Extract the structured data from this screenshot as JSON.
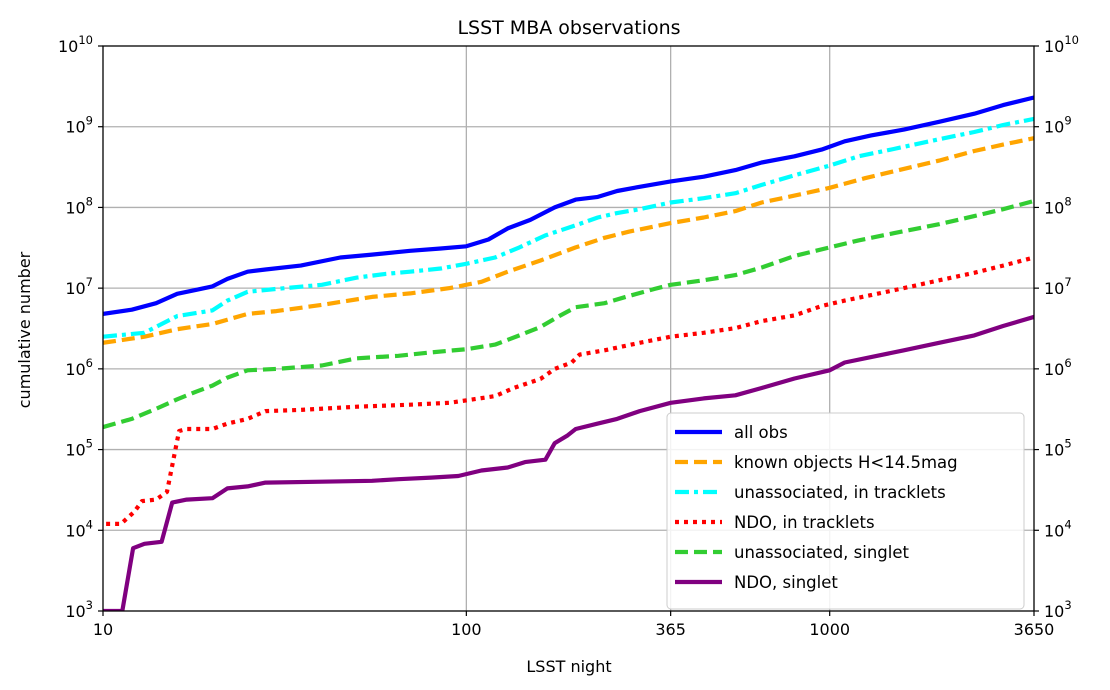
{
  "chart_data": {
    "type": "line",
    "title": "LSST MBA observations",
    "xlabel": "LSST night",
    "ylabel": "cumulative number",
    "x_scale": "log",
    "y_scale": "log",
    "xlim": [
      10,
      3650
    ],
    "ylim": [
      1000,
      10000000000
    ],
    "x_ticks": [
      {
        "value": 10,
        "label": "10"
      },
      {
        "value": 100,
        "label": "100"
      },
      {
        "value": 365,
        "label": "365"
      },
      {
        "value": 1000,
        "label": "1000"
      },
      {
        "value": 3650,
        "label": "3650"
      }
    ],
    "y_ticks": [
      {
        "value": 1000,
        "base": "10",
        "exp": "3"
      },
      {
        "value": 10000,
        "base": "10",
        "exp": "4"
      },
      {
        "value": 100000,
        "base": "10",
        "exp": "5"
      },
      {
        "value": 1000000,
        "base": "10",
        "exp": "6"
      },
      {
        "value": 10000000,
        "base": "10",
        "exp": "7"
      },
      {
        "value": 100000000,
        "base": "10",
        "exp": "8"
      },
      {
        "value": 1000000000,
        "base": "10",
        "exp": "9"
      },
      {
        "value": 10000000000,
        "base": "10",
        "exp": "10"
      }
    ],
    "grid": true,
    "legend_position": "lower-right",
    "series": [
      {
        "name": "all obs",
        "color": "#0000ff",
        "dash": "solid",
        "points": [
          [
            10,
            4800000.0
          ],
          [
            12,
            5400000.0
          ],
          [
            14,
            6500000.0
          ],
          [
            16,
            8500000.0
          ],
          [
            18,
            9500000.0
          ],
          [
            20,
            10500000.0
          ],
          [
            22,
            13000000.0
          ],
          [
            25,
            16000000.0
          ],
          [
            28,
            17000000.0
          ],
          [
            35,
            19000000.0
          ],
          [
            45,
            24000000.0
          ],
          [
            55,
            26000000.0
          ],
          [
            70,
            29000000.0
          ],
          [
            85,
            31000000.0
          ],
          [
            100,
            33000000.0
          ],
          [
            115,
            40000000.0
          ],
          [
            130,
            55000000.0
          ],
          [
            150,
            70000000.0
          ],
          [
            175,
            100000000.0
          ],
          [
            200,
            125000000.0
          ],
          [
            230,
            135000000.0
          ],
          [
            260,
            160000000.0
          ],
          [
            300,
            180000000.0
          ],
          [
            365,
            210000000.0
          ],
          [
            450,
            240000000.0
          ],
          [
            550,
            290000000.0
          ],
          [
            650,
            360000000.0
          ],
          [
            800,
            430000000.0
          ],
          [
            950,
            520000000.0
          ],
          [
            1100,
            660000000.0
          ],
          [
            1300,
            780000000.0
          ],
          [
            1600,
            920000000.0
          ],
          [
            2000,
            1150000000.0
          ],
          [
            2500,
            1450000000.0
          ],
          [
            3000,
            1850000000.0
          ],
          [
            3650,
            2300000000.0
          ]
        ]
      },
      {
        "name": "known objects H<14.5mag",
        "color": "#ffa500",
        "dash": "dashed",
        "points": [
          [
            10,
            2100000.0
          ],
          [
            13,
            2500000.0
          ],
          [
            16,
            3100000.0
          ],
          [
            20,
            3600000.0
          ],
          [
            25,
            4800000.0
          ],
          [
            30,
            5200000.0
          ],
          [
            40,
            6200000.0
          ],
          [
            55,
            7800000.0
          ],
          [
            70,
            8600000.0
          ],
          [
            90,
            10000000.0
          ],
          [
            110,
            12000000.0
          ],
          [
            130,
            16000000.0
          ],
          [
            160,
            22000000.0
          ],
          [
            200,
            32000000.0
          ],
          [
            240,
            42000000.0
          ],
          [
            280,
            50000000.0
          ],
          [
            365,
            64000000.0
          ],
          [
            450,
            75000000.0
          ],
          [
            550,
            90000000.0
          ],
          [
            650,
            115000000.0
          ],
          [
            800,
            140000000.0
          ],
          [
            1000,
            175000000.0
          ],
          [
            1250,
            230000000.0
          ],
          [
            1500,
            280000000.0
          ],
          [
            2000,
            380000000.0
          ],
          [
            2500,
            500000000.0
          ],
          [
            3000,
            600000000.0
          ],
          [
            3650,
            720000000.0
          ]
        ]
      },
      {
        "name": "unassociated, in tracklets",
        "color": "#00ffff",
        "dash": "dashdot",
        "points": [
          [
            10,
            2500000.0
          ],
          [
            13,
            2800000.0
          ],
          [
            16,
            4500000.0
          ],
          [
            18,
            4900000.0
          ],
          [
            20,
            5300000.0
          ],
          [
            22,
            7000000.0
          ],
          [
            25,
            9000000.0
          ],
          [
            30,
            9800000.0
          ],
          [
            40,
            11000000.0
          ],
          [
            50,
            13500000.0
          ],
          [
            60,
            15000000.0
          ],
          [
            70,
            16000000.0
          ],
          [
            85,
            17500000.0
          ],
          [
            100,
            20000000.0
          ],
          [
            120,
            24000000.0
          ],
          [
            140,
            32000000.0
          ],
          [
            165,
            45000000.0
          ],
          [
            200,
            60000000.0
          ],
          [
            230,
            75000000.0
          ],
          [
            260,
            85000000.0
          ],
          [
            300,
            95000000.0
          ],
          [
            365,
            115000000.0
          ],
          [
            450,
            130000000.0
          ],
          [
            550,
            150000000.0
          ],
          [
            650,
            190000000.0
          ],
          [
            800,
            250000000.0
          ],
          [
            1000,
            330000000.0
          ],
          [
            1200,
            430000000.0
          ],
          [
            1500,
            530000000.0
          ],
          [
            2000,
            700000000.0
          ],
          [
            2500,
            860000000.0
          ],
          [
            3000,
            1050000000.0
          ],
          [
            3650,
            1250000000.0
          ]
        ]
      },
      {
        "name": "NDO, in tracklets",
        "color": "#ff0000",
        "dash": "dotted",
        "points": [
          [
            10.2,
            12000.0
          ],
          [
            11.2,
            12000.0
          ],
          [
            12.2,
            17000.0
          ],
          [
            12.8,
            23000.0
          ],
          [
            14,
            24000.0
          ],
          [
            15,
            30000.0
          ],
          [
            16.2,
            170000.0
          ],
          [
            17,
            180000.0
          ],
          [
            20,
            180000.0
          ],
          [
            22,
            210000.0
          ],
          [
            25,
            240000.0
          ],
          [
            28,
            300000.0
          ],
          [
            35,
            310000.0
          ],
          [
            50,
            340000.0
          ],
          [
            70,
            360000.0
          ],
          [
            90,
            380000.0
          ],
          [
            120,
            460000.0
          ],
          [
            135,
            580000.0
          ],
          [
            160,
            750000.0
          ],
          [
            175,
            1000000.0
          ],
          [
            195,
            1200000.0
          ],
          [
            205,
            1500000.0
          ],
          [
            240,
            1700000.0
          ],
          [
            300,
            2100000.0
          ],
          [
            365,
            2500000.0
          ],
          [
            450,
            2800000.0
          ],
          [
            550,
            3200000.0
          ],
          [
            650,
            3900000.0
          ],
          [
            800,
            4600000.0
          ],
          [
            950,
            6000000.0
          ],
          [
            1100,
            7000000.0
          ],
          [
            1300,
            8200000.0
          ],
          [
            1600,
            10000000.0
          ],
          [
            2000,
            12500000.0
          ],
          [
            2500,
            15500000.0
          ],
          [
            3000,
            19000000.0
          ],
          [
            3650,
            24000000.0
          ]
        ]
      },
      {
        "name": "unassociated, singlet",
        "color": "#32cd32",
        "dash": "dashed",
        "points": [
          [
            10,
            190000.0
          ],
          [
            12,
            240000.0
          ],
          [
            14,
            320000.0
          ],
          [
            16,
            420000.0
          ],
          [
            18,
            520000.0
          ],
          [
            20,
            620000.0
          ],
          [
            22,
            780000.0
          ],
          [
            25,
            960000.0
          ],
          [
            30,
            1000000.0
          ],
          [
            40,
            1100000.0
          ],
          [
            50,
            1350000.0
          ],
          [
            65,
            1450000.0
          ],
          [
            80,
            1600000.0
          ],
          [
            100,
            1750000.0
          ],
          [
            120,
            2000000.0
          ],
          [
            140,
            2600000.0
          ],
          [
            160,
            3300000.0
          ],
          [
            180,
            4500000.0
          ],
          [
            200,
            5800000.0
          ],
          [
            240,
            6500000.0
          ],
          [
            280,
            8000000.0
          ],
          [
            330,
            9800000.0
          ],
          [
            365,
            11000000.0
          ],
          [
            450,
            12500000.0
          ],
          [
            550,
            14500000.0
          ],
          [
            650,
            18000000.0
          ],
          [
            800,
            25000000.0
          ],
          [
            1000,
            32000000.0
          ],
          [
            1200,
            39000000.0
          ],
          [
            1500,
            48000000.0
          ],
          [
            2000,
            62000000.0
          ],
          [
            2500,
            78000000.0
          ],
          [
            3000,
            95000000.0
          ],
          [
            3650,
            120000000.0
          ]
        ]
      },
      {
        "name": "NDO, singlet",
        "color": "#800080",
        "dash": "solid",
        "points": [
          [
            10,
            1000
          ],
          [
            11.3,
            1000
          ],
          [
            12.1,
            6000
          ],
          [
            13,
            6800
          ],
          [
            14.5,
            7200
          ],
          [
            15.5,
            22000.0
          ],
          [
            17,
            24000.0
          ],
          [
            20,
            25000.0
          ],
          [
            22,
            33000.0
          ],
          [
            25,
            35000.0
          ],
          [
            28,
            39000.0
          ],
          [
            40,
            40000.0
          ],
          [
            55,
            41000.0
          ],
          [
            65,
            43000.0
          ],
          [
            80,
            45000.0
          ],
          [
            95,
            47000.0
          ],
          [
            110,
            55000.0
          ],
          [
            130,
            60000.0
          ],
          [
            145,
            70000.0
          ],
          [
            165,
            75000.0
          ],
          [
            175,
            120000.0
          ],
          [
            190,
            150000.0
          ],
          [
            200,
            180000.0
          ],
          [
            230,
            210000.0
          ],
          [
            260,
            240000.0
          ],
          [
            300,
            300000.0
          ],
          [
            365,
            380000.0
          ],
          [
            450,
            430000.0
          ],
          [
            550,
            470000.0
          ],
          [
            650,
            580000.0
          ],
          [
            800,
            760000.0
          ],
          [
            1000,
            960000.0
          ],
          [
            1100,
            1200000.0
          ],
          [
            1300,
            1400000.0
          ],
          [
            1600,
            1700000.0
          ],
          [
            2000,
            2100000.0
          ],
          [
            2500,
            2600000.0
          ],
          [
            3000,
            3400000.0
          ],
          [
            3650,
            4400000.0
          ]
        ]
      }
    ]
  }
}
